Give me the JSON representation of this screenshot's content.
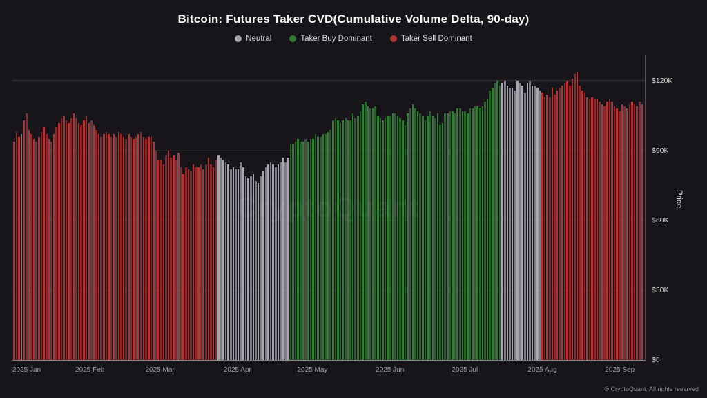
{
  "header": {
    "title": "Bitcoin: Futures Taker CVD(Cumulative Volume Delta, 90-day)"
  },
  "legend": {
    "items": [
      {
        "label": "Neutral",
        "key": "n"
      },
      {
        "label": "Taker Buy Dominant",
        "key": "b"
      },
      {
        "label": "Taker Sell Dominant",
        "key": "s"
      }
    ]
  },
  "watermark": "CryptoQuant",
  "footer": "® CryptoQuant. All rights reserved",
  "axis": {
    "price_label": "Price",
    "ymax": 131,
    "ticks": [
      {
        "value": 0,
        "label": "$0"
      },
      {
        "value": 30,
        "label": "$30K"
      },
      {
        "value": 60,
        "label": "$60K"
      },
      {
        "value": 90,
        "label": "$90K"
      },
      {
        "value": 120,
        "label": "$120K"
      }
    ]
  },
  "chart_data": {
    "type": "bar",
    "title": "Bitcoin: Futures Taker CVD(Cumulative Volume Delta, 90-day)",
    "ylabel": "Price",
    "unit": "thousand USD",
    "ylim": [
      0,
      131
    ],
    "legend_position": "top",
    "grid": "faint horizontal",
    "colors": {
      "n": "#a6a6ae",
      "b": "#2f7d32",
      "s": "#b03434"
    },
    "dominance_legend": {
      "n": "Neutral",
      "b": "Taker Buy Dominant",
      "s": "Taker Sell Dominant"
    },
    "months": [
      {
        "label": "2025 Jan",
        "values": [
          94,
          98,
          96,
          97,
          103,
          106,
          99,
          97,
          95,
          94,
          96,
          98,
          100,
          97,
          95,
          94,
          97,
          100,
          102,
          104,
          105,
          103,
          102,
          104,
          106,
          104,
          102,
          101,
          103,
          105,
          102
        ],
        "dominance": "sssnsssssssssssssssssssssssssss"
      },
      {
        "label": "2025 Feb",
        "values": [
          103,
          101,
          99,
          97,
          96,
          97,
          98,
          97,
          96,
          97,
          96,
          98,
          97,
          96,
          95,
          97,
          96,
          95,
          96,
          97,
          98,
          96,
          95,
          96,
          96,
          94,
          90,
          86
        ],
        "dominance": "ssssssssssssssssssssssssssss"
      },
      {
        "label": "2025 Mar",
        "values": [
          86,
          84,
          88,
          90,
          87,
          88,
          86,
          89,
          83,
          80,
          83,
          82,
          81,
          84,
          83,
          83,
          84,
          82,
          84,
          87,
          84,
          83,
          86,
          88,
          87,
          86,
          85,
          84,
          82,
          83,
          82
        ],
        "dominance": "sssssssssssssssssssssssnnnnnnnn"
      },
      {
        "label": "2025 Apr",
        "values": [
          82,
          85,
          83,
          79,
          78,
          79,
          80,
          77,
          76,
          79,
          81,
          83,
          84,
          85,
          84,
          83,
          84,
          85,
          87,
          85,
          87,
          93,
          93,
          94,
          95,
          94,
          94,
          95,
          94,
          95
        ],
        "dominance": "nnnnnnnnnnnnnnnnnnnnnbbbbbbbbb"
      },
      {
        "label": "2025 May",
        "values": [
          95,
          97,
          96,
          96,
          97,
          97,
          98,
          99,
          103,
          104,
          103,
          102,
          103,
          104,
          103,
          103,
          106,
          104,
          105,
          107,
          110,
          111,
          109,
          108,
          108,
          109,
          105,
          104,
          103,
          104,
          105
        ],
        "dominance": "bbbbbbbbbbbbbbbbbbbbbbbbbbbbbbb"
      },
      {
        "label": "2025 Jun",
        "values": [
          105,
          106,
          106,
          105,
          104,
          103,
          101,
          106,
          108,
          110,
          108,
          107,
          106,
          105,
          103,
          105,
          107,
          105,
          104,
          106,
          101,
          102,
          106,
          106,
          107,
          107,
          106,
          108,
          108,
          107
        ],
        "dominance": "bbbbbbbbbbbbbbbbbbbbbbbbbbbbbb"
      },
      {
        "label": "2025 Jul",
        "values": [
          107,
          106,
          108,
          108,
          109,
          109,
          108,
          109,
          111,
          112,
          116,
          117,
          119,
          120,
          118,
          119,
          120,
          118,
          117,
          117,
          116,
          120,
          119,
          118,
          115,
          119,
          120,
          118,
          118,
          117,
          116
        ],
        "dominance": "bbbbbbbbbbbbbbbnnnnnnnnnnnnnnnn"
      },
      {
        "label": "2025 Aug",
        "values": [
          115,
          113,
          114,
          113,
          117,
          114,
          116,
          117,
          118,
          119,
          120,
          118,
          121,
          123,
          124,
          118,
          116,
          115,
          113,
          112,
          113,
          112,
          112,
          111,
          110,
          109,
          111,
          112,
          111,
          109,
          108
        ],
        "dominance": "sssssssssssssssssssssssssssssss"
      },
      {
        "label": "2025 Sep",
        "values": [
          107,
          110,
          109,
          108,
          110,
          111,
          110,
          109,
          111,
          110
        ],
        "dominance": "ssssssssss"
      }
    ]
  }
}
